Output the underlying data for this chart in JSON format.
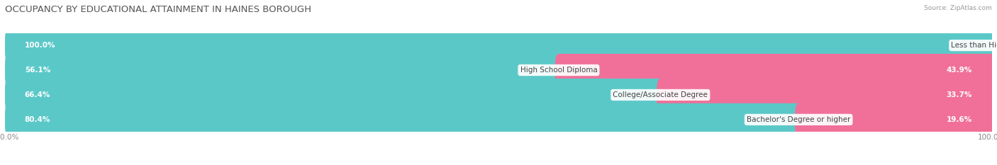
{
  "title": "OCCUPANCY BY EDUCATIONAL ATTAINMENT IN HAINES BOROUGH",
  "source": "Source: ZipAtlas.com",
  "categories": [
    "Less than High School",
    "High School Diploma",
    "College/Associate Degree",
    "Bachelor's Degree or higher"
  ],
  "owner_pct": [
    100.0,
    56.1,
    66.4,
    80.4
  ],
  "renter_pct": [
    0.0,
    43.9,
    33.7,
    19.6
  ],
  "owner_color": "#5BC8C8",
  "renter_color": "#F07099",
  "row_bg_even": "#EBEBEB",
  "row_bg_odd": "#F8F8F8",
  "title_fontsize": 9.5,
  "label_fontsize": 7.5,
  "pct_fontsize": 7.5,
  "axis_label_fontsize": 7.5,
  "legend_fontsize": 8,
  "figsize": [
    14.06,
    2.33
  ],
  "dpi": 100
}
